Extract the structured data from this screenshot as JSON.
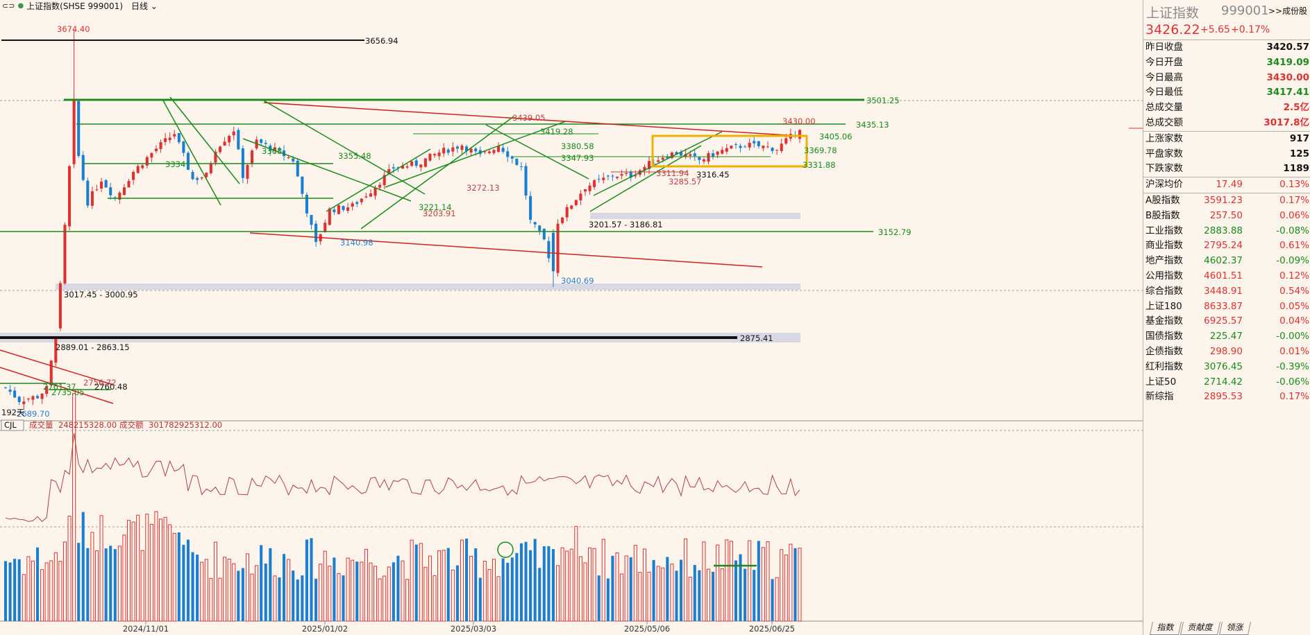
{
  "header": {
    "icon": "chain-icon",
    "dot_color": "#3a9a4a",
    "title": "上证指数(SHSE 999001)",
    "period": "日线"
  },
  "chart_data": {
    "type": "candlestick",
    "y_range_main": [
      2680,
      3690
    ],
    "levels": [
      {
        "label": "3674.40"
      },
      {
        "label": "3656.94"
      },
      {
        "label": "3501.25"
      },
      {
        "label": "3435.13"
      },
      {
        "label": "3430.00"
      },
      {
        "label": "3419.28"
      },
      {
        "label": "3405.06"
      },
      {
        "label": "3380.58"
      },
      {
        "label": "3369.78"
      },
      {
        "label": "3368"
      },
      {
        "label": "3355.48"
      },
      {
        "label": "3347.93"
      },
      {
        "label": "3334"
      },
      {
        "label": "3331.88"
      },
      {
        "label": "3316.45"
      },
      {
        "label": "3311.94"
      },
      {
        "label": "3285.57"
      },
      {
        "label": "3272.13"
      },
      {
        "label": "3221.14"
      },
      {
        "label": "3203.91"
      },
      {
        "label": "3201.57 - 3186.81"
      },
      {
        "label": "3152.79"
      },
      {
        "label": "3140.98"
      },
      {
        "label": "3040.69"
      },
      {
        "label": "3017.45 - 3000.95"
      },
      {
        "label": "2889.01 - 2863.15"
      },
      {
        "label": "2875.41"
      },
      {
        "label": "2761.37"
      },
      {
        "label": "2760.48"
      },
      {
        "label": "2756.72"
      },
      {
        "label": "2735.05"
      },
      {
        "label": "2689.70"
      },
      {
        "label": "3439.05"
      }
    ],
    "annotation_days": "192天",
    "x_ticks": [
      "2024/11/01",
      "2025/01/02",
      "2025/03/03",
      "2025/05/06",
      "2025/06/25"
    ],
    "volume_header": {
      "indicator": "CJL",
      "vol_label": "成交量",
      "vol_value": "248215328.00",
      "amt_label": "成交额",
      "amt_value": "301782925312.00"
    },
    "up_color": "#e03030",
    "down_color": "#1a7fd0",
    "green_line_color": "#1a8a1a"
  },
  "panel": {
    "title": "上证指数",
    "code": "999001",
    "link": ">>成份股",
    "price": "3426.22",
    "change": "+5.65",
    "pct": "+0.17%",
    "stats": [
      {
        "label": "昨日收盘",
        "value": "3420.57",
        "color": "#111111"
      },
      {
        "label": "今日开盘",
        "value": "3419.09",
        "color": "#1a8a1a"
      },
      {
        "label": "今日最高",
        "value": "3430.00",
        "color": "#e03030"
      },
      {
        "label": "今日最低",
        "value": "3417.41",
        "color": "#1a8a1a"
      },
      {
        "label": "总成交量",
        "value": "2.5亿",
        "color": "#e03030"
      },
      {
        "label": "总成交额",
        "value": "3017.8亿",
        "color": "#e03030"
      }
    ],
    "counts": [
      {
        "label": "上涨家数",
        "value": "917"
      },
      {
        "label": "平盘家数",
        "value": "125"
      },
      {
        "label": "下跌家数",
        "value": "1189"
      }
    ],
    "avg": {
      "label": "沪深均价",
      "value": "17.49",
      "pct": "0.13%"
    },
    "indices": [
      {
        "label": "A股指数",
        "value": "3591.23",
        "pct": "0.17%",
        "up": true
      },
      {
        "label": "B股指数",
        "value": "257.50",
        "pct": "0.06%",
        "up": true
      },
      {
        "label": "工业指数",
        "value": "2883.88",
        "pct": "-0.08%",
        "up": false
      },
      {
        "label": "商业指数",
        "value": "2795.24",
        "pct": "0.61%",
        "up": true
      },
      {
        "label": "地产指数",
        "value": "4602.37",
        "pct": "-0.09%",
        "up": false
      },
      {
        "label": "公用指数",
        "value": "4601.51",
        "pct": "0.12%",
        "up": true
      },
      {
        "label": "综合指数",
        "value": "3448.91",
        "pct": "0.54%",
        "up": true
      },
      {
        "label": "上证180",
        "value": "8633.87",
        "pct": "0.05%",
        "up": true
      },
      {
        "label": "基金指数",
        "value": "6925.57",
        "pct": "0.04%",
        "up": true
      },
      {
        "label": "国债指数",
        "value": "225.47",
        "pct": "-0.00%",
        "up": false
      },
      {
        "label": "企债指数",
        "value": "298.90",
        "pct": "0.01%",
        "up": true
      },
      {
        "label": "红利指数",
        "value": "3076.45",
        "pct": "-0.39%",
        "up": false
      },
      {
        "label": "上证50",
        "value": "2714.42",
        "pct": "-0.06%",
        "up": false
      },
      {
        "label": "新综指",
        "value": "2895.53",
        "pct": "0.17%",
        "up": true
      }
    ]
  },
  "tabs": [
    "指数",
    "贡献度",
    "领涨"
  ]
}
